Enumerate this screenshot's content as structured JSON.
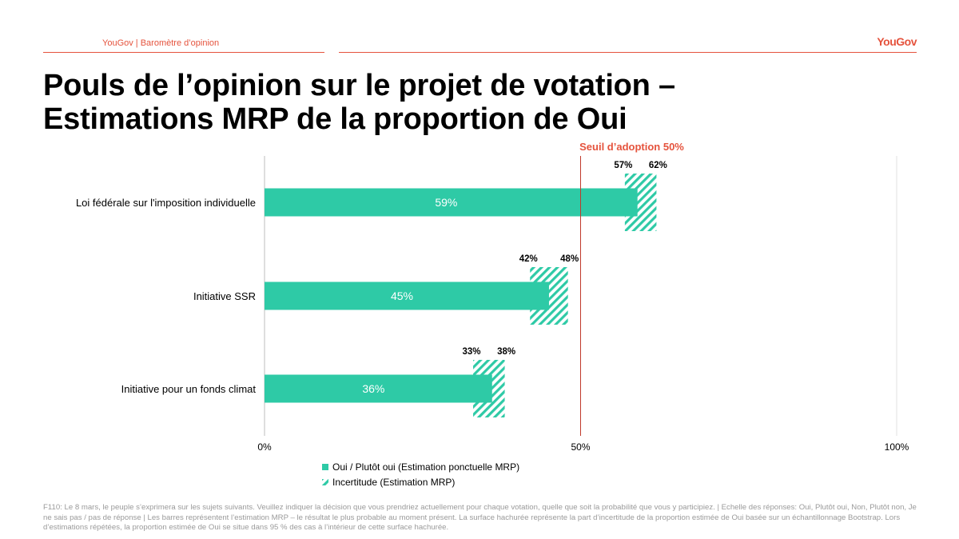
{
  "header": {
    "subtitle": "YouGov | Baromètre d’opinion",
    "logo": "YouGov"
  },
  "title": {
    "line1": "Pouls de l’opinion sur le projet de votation –",
    "line2": "Estimations MRP de la proportion de Oui"
  },
  "chart_data": {
    "type": "bar",
    "orientation": "horizontal",
    "categories": [
      "Loi fédérale sur l'imposition individuelle",
      "Initiative SSR",
      "Initiative pour un fonds climat"
    ],
    "series": [
      {
        "name": "Oui / Plutôt oui (Estimation ponctuelle MRP)",
        "values": [
          59,
          45,
          36
        ],
        "labels": [
          "59%",
          "45%",
          "36%"
        ]
      },
      {
        "name": "Incertitude (Estimation MRP)",
        "low": [
          57,
          42,
          33
        ],
        "high": [
          62,
          48,
          38
        ],
        "low_labels": [
          "57%",
          "42%",
          "33%"
        ],
        "high_labels": [
          "62%",
          "48%",
          "38%"
        ]
      }
    ],
    "xlim": [
      0,
      100
    ],
    "x_ticks": [
      "0%",
      "50%",
      "100%"
    ],
    "threshold": {
      "value": 50,
      "label": "Seuil d’adoption 50%"
    },
    "legend": [
      "Oui / Plutôt oui (Estimation ponctuelle MRP)",
      "Incertitude (Estimation MRP)"
    ]
  },
  "colors": {
    "bar": "#2ecaa6",
    "hatch": "#2ecaa6",
    "threshold": "#c0392b",
    "threshold_text": "#e5533d",
    "accent": "#e5533d"
  },
  "footer": "F110: Le 8 mars, le peuple s’exprimera sur les sujets suivants. Veuillez indiquer la décision que vous prendriez actuellement pour chaque votation, quelle que soit la probabilité que vous y participiez. | Echelle des réponses: Oui, Plutôt oui, Non, Plutôt non, Je ne sais pas / pas de réponse | Les barres représentent l’estimation MRP – le résultat le plus probable au moment présent. La surface hachurée représente la part d’incertitude de la proportion estimée de Oui basée sur un échantillonnage Bootstrap. Lors d’estimations répétées, la proportion estimée de Oui se situe dans 95 % des cas à l’intérieur de cette surface hachurée."
}
